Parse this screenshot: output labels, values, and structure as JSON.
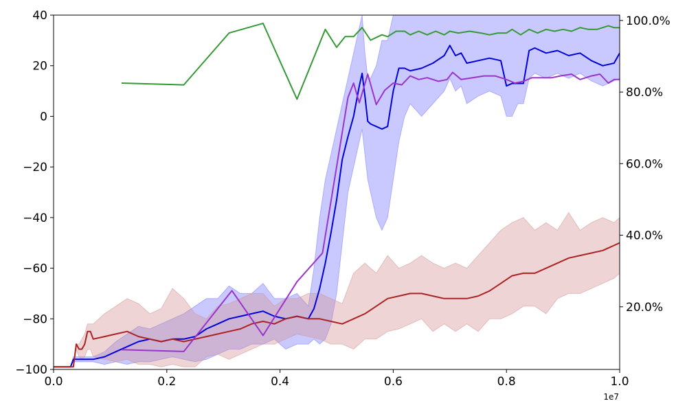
{
  "chart_data": {
    "type": "line",
    "x_multiplier_label": "1e7",
    "xlim": [
      0,
      10000000
    ],
    "ylim_left": [
      -100,
      40
    ],
    "ylim_right": [
      2.5,
      101.5
    ],
    "x_ticks": [
      0,
      2000000,
      4000000,
      6000000,
      8000000,
      10000000
    ],
    "x_tick_labels": [
      "0.0",
      "0.2",
      "0.4",
      "0.6",
      "0.8",
      "1.0"
    ],
    "y_left_ticks": [
      -100,
      -80,
      -60,
      -40,
      -20,
      0,
      20,
      40
    ],
    "y_left_tick_labels": [
      "−100",
      "−80",
      "−60",
      "−40",
      "−20",
      "0",
      "20",
      "40"
    ],
    "y_right_ticks": [
      20,
      40,
      60,
      80,
      100
    ],
    "y_right_tick_labels": [
      "20.0%",
      "40.0%",
      "60.0%",
      "80.0%",
      "100.0%"
    ],
    "grid": false,
    "legend": "none",
    "series": [
      {
        "axis": "left",
        "color": "#0000dd",
        "band_color": "#7777ff",
        "x": [
          0,
          300000,
          350000,
          700000,
          900000,
          1100000,
          1300000,
          1500000,
          1700000,
          1900000,
          2100000,
          2300000,
          2500000,
          2700000,
          2900000,
          3100000,
          3300000,
          3500000,
          3700000,
          3900000,
          4100000,
          4300000,
          4500000,
          4600000,
          4700000,
          4800000,
          4900000,
          5000000,
          5100000,
          5200000,
          5300000,
          5400000,
          5450000,
          5500000,
          5550000,
          5600000,
          5700000,
          5800000,
          5900000,
          6000000,
          6100000,
          6200000,
          6300000,
          6500000,
          6700000,
          6900000,
          7000000,
          7100000,
          7200000,
          7300000,
          7500000,
          7700000,
          7900000,
          8000000,
          8100000,
          8200000,
          8300000,
          8400000,
          8500000,
          8700000,
          8900000,
          9100000,
          9300000,
          9500000,
          9700000,
          9900000,
          10000000
        ],
        "mean": [
          -99,
          -99,
          -96,
          -96,
          -95,
          -93,
          -91,
          -89,
          -88,
          -89,
          -88,
          -88,
          -87,
          -84,
          -82,
          -80,
          -79,
          -78,
          -77,
          -79,
          -80,
          -79,
          -80,
          -76,
          -68,
          -58,
          -46,
          -33,
          -17,
          -8,
          0,
          12,
          17,
          8,
          -2,
          -3,
          -4,
          -5,
          -4,
          10,
          19,
          19,
          18,
          19,
          21,
          24,
          28,
          24,
          25,
          21,
          22,
          23,
          22,
          12,
          13,
          13,
          13,
          26,
          27,
          25,
          26,
          24,
          25,
          22,
          20,
          21,
          25
        ],
        "upper": [
          -99,
          -99,
          -95,
          -95,
          -93,
          -89,
          -86,
          -83,
          -84,
          -82,
          -80,
          -78,
          -75,
          -72,
          -72,
          -67,
          -70,
          -70,
          -66,
          -72,
          -72,
          -70,
          -75,
          -60,
          -40,
          -25,
          -15,
          -5,
          5,
          15,
          25,
          35,
          40,
          25,
          15,
          15,
          20,
          30,
          30,
          40,
          40,
          40,
          40,
          40,
          40,
          40,
          40,
          40,
          40,
          40,
          40,
          40,
          40,
          40,
          40,
          40,
          40,
          40,
          40,
          40,
          40,
          40,
          40,
          40,
          40,
          40,
          40
        ],
        "lower": [
          -99,
          -99,
          -97,
          -97,
          -98,
          -97,
          -98,
          -97,
          -97,
          -96,
          -95,
          -96,
          -97,
          -96,
          -94,
          -92,
          -92,
          -90,
          -90,
          -88,
          -92,
          -90,
          -90,
          -88,
          -90,
          -88,
          -82,
          -70,
          -50,
          -30,
          -20,
          -10,
          -5,
          -15,
          -25,
          -30,
          -40,
          -45,
          -40,
          -25,
          -10,
          0,
          5,
          0,
          5,
          10,
          15,
          10,
          12,
          5,
          8,
          10,
          8,
          0,
          0,
          5,
          5,
          15,
          17,
          15,
          17,
          15,
          17,
          14,
          12,
          14,
          15
        ]
      },
      {
        "axis": "left",
        "color": "#aa2222",
        "band_color": "#d49494",
        "x": [
          0,
          350000,
          400000,
          450000,
          500000,
          550000,
          600000,
          650000,
          700000,
          900000,
          1100000,
          1300000,
          1500000,
          1700000,
          1900000,
          2100000,
          2300000,
          2500000,
          2700000,
          2900000,
          3100000,
          3300000,
          3500000,
          3700000,
          3900000,
          4100000,
          4300000,
          4500000,
          4700000,
          4900000,
          5100000,
          5300000,
          5500000,
          5700000,
          5900000,
          6100000,
          6300000,
          6500000,
          6700000,
          6900000,
          7100000,
          7300000,
          7500000,
          7700000,
          7900000,
          8100000,
          8300000,
          8500000,
          8700000,
          8900000,
          9100000,
          9300000,
          9500000,
          9700000,
          9900000,
          10000000
        ],
        "mean": [
          -99,
          -99,
          -90,
          -92,
          -92,
          -90,
          -85,
          -85,
          -88,
          -87,
          -86,
          -85,
          -87,
          -88,
          -89,
          -88,
          -89,
          -88,
          -87,
          -86,
          -85,
          -84,
          -82,
          -81,
          -82,
          -80,
          -79,
          -80,
          -80,
          -81,
          -82,
          -80,
          -78,
          -75,
          -72,
          -71,
          -70,
          -70,
          -71,
          -72,
          -72,
          -72,
          -71,
          -69,
          -66,
          -63,
          -62,
          -62,
          -60,
          -58,
          -56,
          -55,
          -54,
          -53,
          -51,
          -50
        ],
        "upper": [
          -99,
          -99,
          -90,
          -90,
          -88,
          -86,
          -82,
          -82,
          -82,
          -78,
          -75,
          -72,
          -74,
          -78,
          -76,
          -68,
          -72,
          -78,
          -80,
          -75,
          -74,
          -72,
          -70,
          -70,
          -75,
          -72,
          -72,
          -70,
          -70,
          -72,
          -74,
          -62,
          -58,
          -62,
          -55,
          -60,
          -58,
          -55,
          -58,
          -60,
          -58,
          -60,
          -55,
          -50,
          -45,
          -42,
          -40,
          -45,
          -42,
          -45,
          -38,
          -45,
          -42,
          -40,
          -42,
          -40
        ],
        "lower": [
          -99,
          -99,
          -92,
          -95,
          -96,
          -95,
          -92,
          -92,
          -95,
          -96,
          -97,
          -96,
          -98,
          -98,
          -99,
          -98,
          -99,
          -99,
          -95,
          -94,
          -96,
          -94,
          -92,
          -90,
          -90,
          -88,
          -86,
          -87,
          -88,
          -90,
          -90,
          -92,
          -88,
          -88,
          -85,
          -84,
          -82,
          -80,
          -85,
          -82,
          -85,
          -82,
          -85,
          -80,
          -80,
          -78,
          -75,
          -75,
          -78,
          -72,
          -70,
          -70,
          -68,
          -66,
          -64,
          -62
        ]
      },
      {
        "axis": "right",
        "color": "#339933",
        "x": [
          1200000,
          2300000,
          3100000,
          3700000,
          4300000,
          4800000,
          5000000,
          5150000,
          5300000,
          5450000,
          5600000,
          5800000,
          5900000,
          6050000,
          6200000,
          6300000,
          6450000,
          6600000,
          6750000,
          6900000,
          7000000,
          7150000,
          7350000,
          7550000,
          7700000,
          7850000,
          8000000,
          8100000,
          8250000,
          8400000,
          8550000,
          8700000,
          8850000,
          9000000,
          9150000,
          9300000,
          9450000,
          9600000,
          9800000,
          9900000,
          10000000
        ],
        "values": [
          82.5,
          82.0,
          96.5,
          99.2,
          78.0,
          97.5,
          92.5,
          95.5,
          95.5,
          98.0,
          94.5,
          96.0,
          95.5,
          97.0,
          97.0,
          96.0,
          97.0,
          96.0,
          97.0,
          96.0,
          97.0,
          96.5,
          97.0,
          96.5,
          96.0,
          96.5,
          96.5,
          97.5,
          96.0,
          97.5,
          96.5,
          97.5,
          97.0,
          97.5,
          97.0,
          98.0,
          97.5,
          97.5,
          98.5,
          98.0,
          98.0
        ]
      },
      {
        "axis": "right",
        "color": "#9933cc",
        "x": [
          1200000,
          2300000,
          3150000,
          3700000,
          4300000,
          4750000,
          5200000,
          5300000,
          5400000,
          5550000,
          5700000,
          5850000,
          6000000,
          6150000,
          6300000,
          6450000,
          6600000,
          6800000,
          6950000,
          7050000,
          7200000,
          7400000,
          7600000,
          7800000,
          8000000,
          8150000,
          8300000,
          8450000,
          8600000,
          8800000,
          8950000,
          9150000,
          9300000,
          9500000,
          9650000,
          9800000,
          9900000,
          10000000
        ],
        "values": [
          8.0,
          7.5,
          24.5,
          12.0,
          27.0,
          35.0,
          78.5,
          82.5,
          77.0,
          85.0,
          76.5,
          80.5,
          82.5,
          82.0,
          84.5,
          83.5,
          84.0,
          83.0,
          83.5,
          85.5,
          83.5,
          84.0,
          84.5,
          84.5,
          83.5,
          82.5,
          83.0,
          84.0,
          84.0,
          84.0,
          84.5,
          85.0,
          83.5,
          84.5,
          85.0,
          82.5,
          83.5,
          83.5
        ]
      }
    ]
  }
}
